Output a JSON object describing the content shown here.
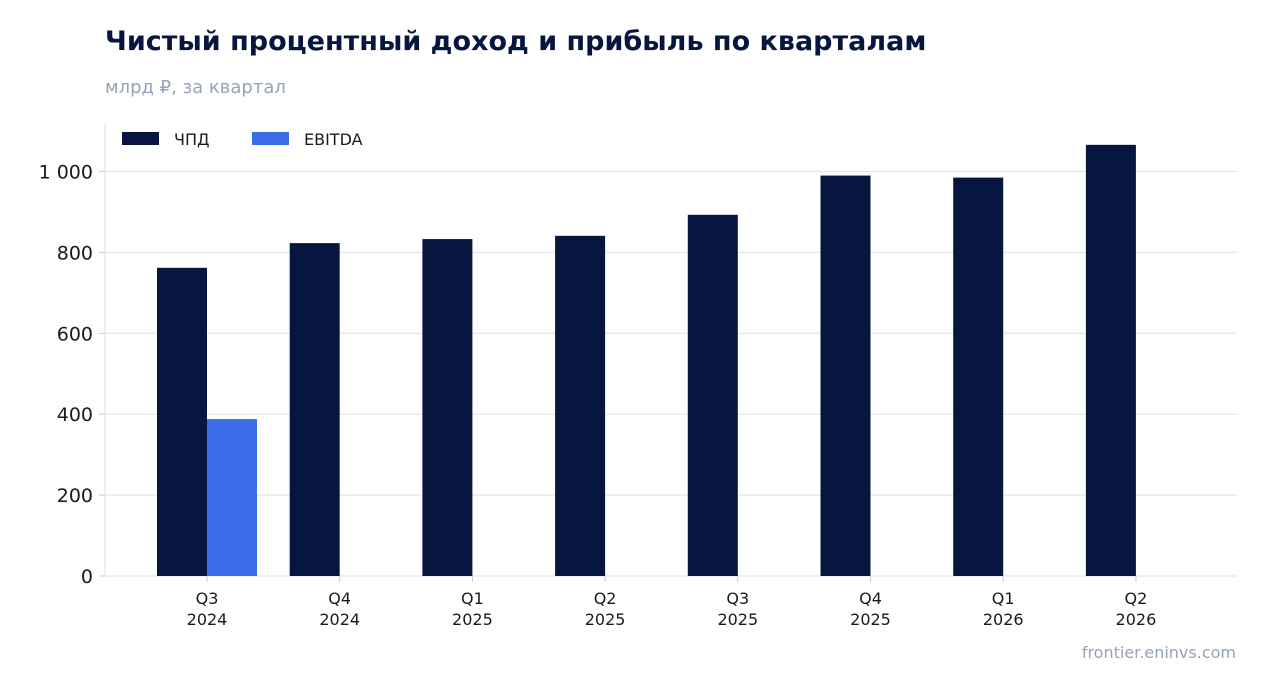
{
  "chart_data": {
    "type": "bar",
    "title": "Чистый процентный доход и прибыль по кварталам",
    "subtitle": "млрд ₽, за квартал",
    "source": "frontier.eninvs.com",
    "categories": [
      [
        "Q3",
        "2024"
      ],
      [
        "Q4",
        "2024"
      ],
      [
        "Q1",
        "2025"
      ],
      [
        "Q2",
        "2025"
      ],
      [
        "Q3",
        "2025"
      ],
      [
        "Q4",
        "2025"
      ],
      [
        "Q1",
        "2026"
      ],
      [
        "Q2",
        "2026"
      ]
    ],
    "series": [
      {
        "name": "ЧПД",
        "color": "#06163f",
        "values": [
          762,
          823,
          833,
          841,
          893,
          990,
          985,
          1066
        ]
      },
      {
        "name": "EBITDA",
        "color": "#3b6de9",
        "values": [
          388,
          null,
          null,
          null,
          null,
          null,
          null,
          null
        ]
      }
    ],
    "ylim": [
      0,
      1120
    ],
    "yticks": [
      {
        "value": 0,
        "label": "0"
      },
      {
        "value": 200,
        "label": "200"
      },
      {
        "value": 400,
        "label": "400"
      },
      {
        "value": 600,
        "label": "600"
      },
      {
        "value": 800,
        "label": "800"
      },
      {
        "value": 1000,
        "label": "1 000"
      }
    ],
    "grid": true,
    "legend": "top-left",
    "xlabel": "",
    "ylabel": ""
  }
}
